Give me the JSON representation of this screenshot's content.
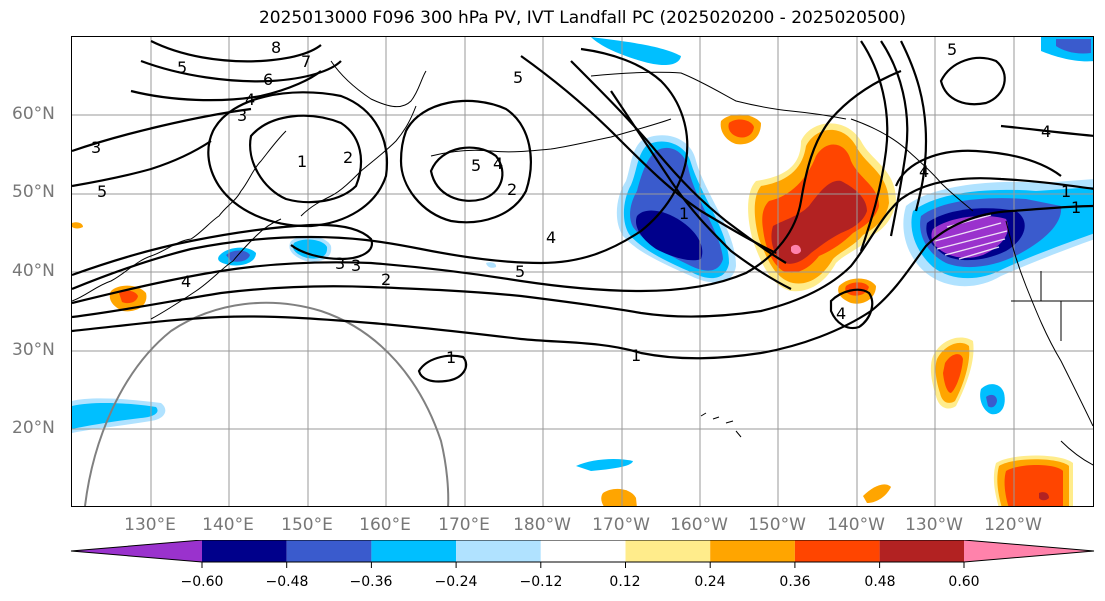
{
  "title": "2025013000 F096 300 hPa PV, IVT Landfall PC (2025020200 - 2025020500)",
  "lat_labels": [
    "60°N",
    "50°N",
    "40°N",
    "30°N",
    "20°N"
  ],
  "lon_labels": [
    "130°E",
    "140°E",
    "150°E",
    "160°E",
    "170°E",
    "180°W",
    "170°W",
    "160°W",
    "150°W",
    "140°W",
    "130°W",
    "120°W"
  ],
  "colorbar": {
    "tick_labels": [
      "−0.60",
      "−0.48",
      "−0.36",
      "−0.24",
      "−0.12",
      "0.12",
      "0.24",
      "0.36",
      "0.48",
      "0.60"
    ],
    "colors": [
      "#9a32cd",
      "#00008b",
      "#3a5bcd",
      "#00bfff",
      "#b0e2ff",
      "#ffffff",
      "#ffec8b",
      "#ffa500",
      "#ff4500",
      "#b22222",
      "#ff82ab"
    ]
  },
  "contour_labels": [
    "8",
    "7",
    "6",
    "5",
    "4",
    "3",
    "3",
    "5",
    "1",
    "2",
    "5",
    "4",
    "3",
    "1",
    "4",
    "5",
    "4",
    "5",
    "2",
    "3",
    "2",
    "4",
    "4",
    "1",
    "1",
    "1",
    "1",
    "5",
    "4"
  ],
  "shading_colors": {
    "purple": "#9a32cd",
    "navy": "#00008b",
    "blue": "#3a5bcd",
    "sky": "#00bfff",
    "pale": "#b0e2ff",
    "yellow": "#ffec8b",
    "orange": "#ffa500",
    "red": "#ff4500",
    "darkred": "#b22222",
    "pink": "#ff82ab"
  }
}
